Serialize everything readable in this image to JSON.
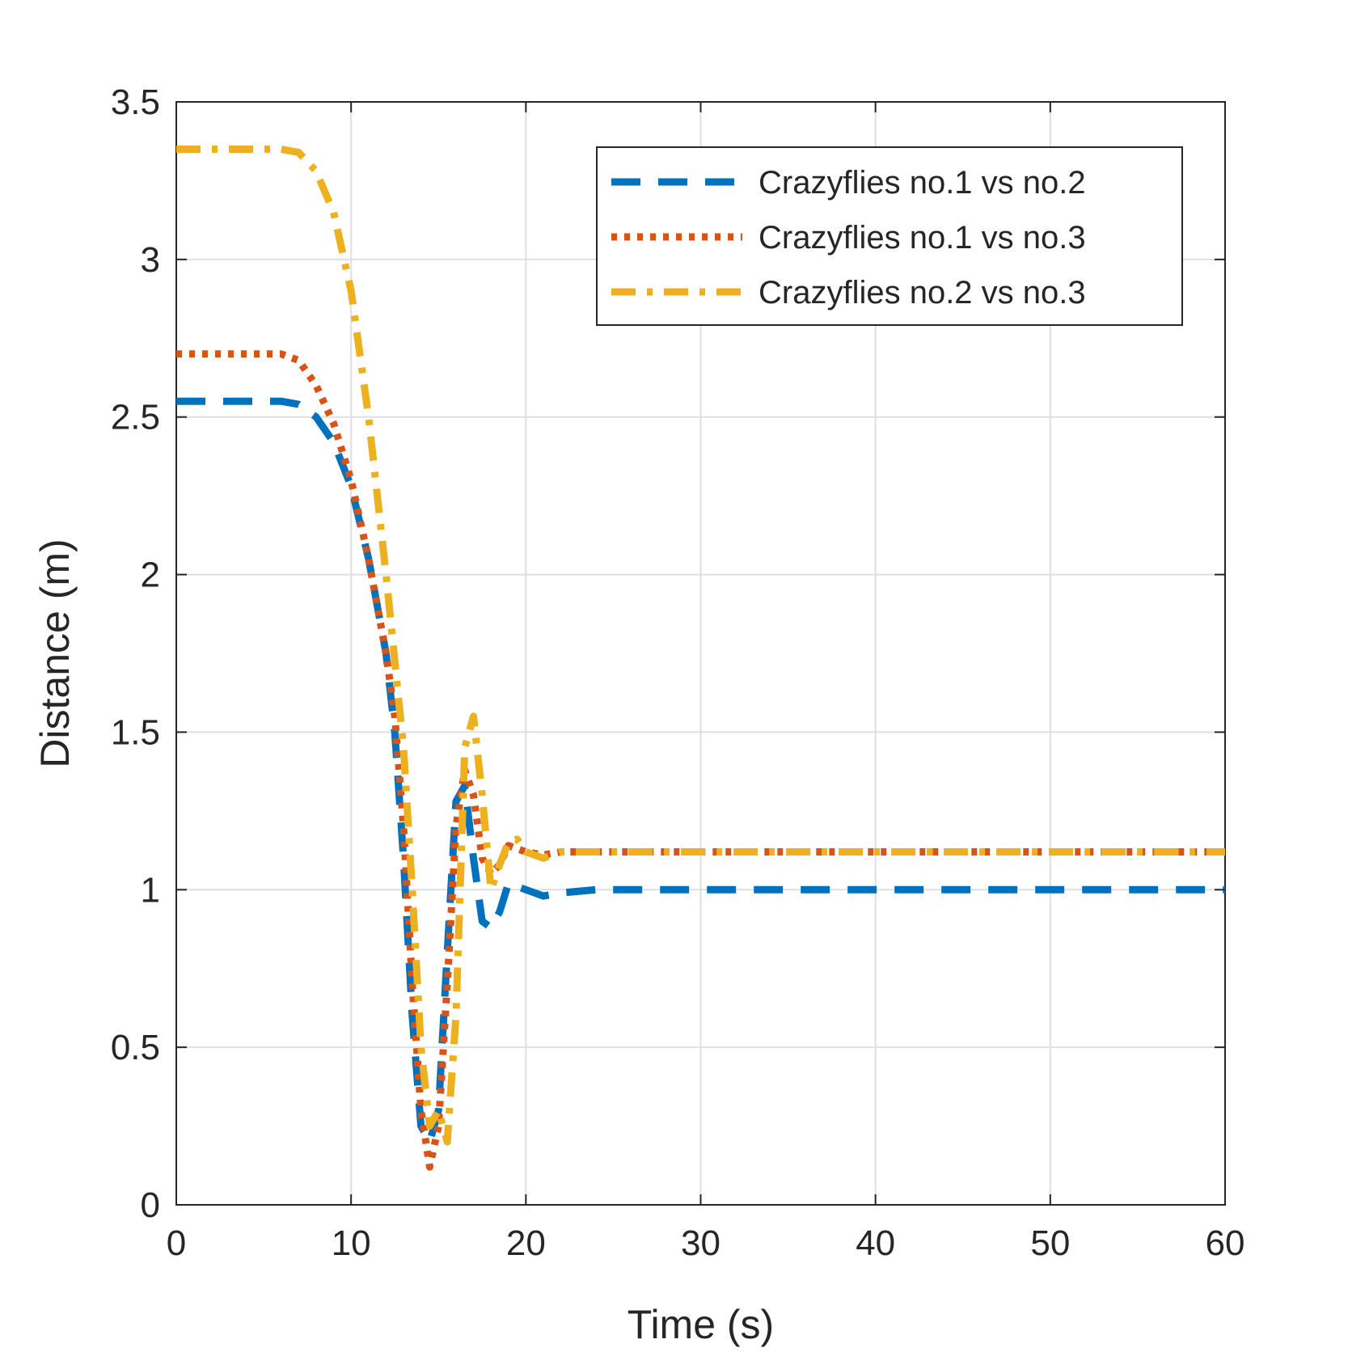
{
  "chart_data": {
    "type": "line",
    "title": "",
    "xlabel": "Time (s)",
    "ylabel": "Distance (m)",
    "xlim": [
      0,
      60
    ],
    "ylim": [
      0,
      3.5
    ],
    "xticks": [
      0,
      10,
      20,
      30,
      40,
      50,
      60
    ],
    "yticks": [
      0,
      0.5,
      1,
      1.5,
      2,
      2.5,
      3,
      3.5
    ],
    "xtick_labels": [
      "0",
      "10",
      "20",
      "30",
      "40",
      "50",
      "60"
    ],
    "ytick_labels": [
      "0",
      "0.5",
      "1",
      "1.5",
      "2",
      "2.5",
      "3",
      "3.5"
    ],
    "grid": true,
    "legend_position": "top-right",
    "series": [
      {
        "name": "Crazyflies no.1 vs no.2",
        "color": "#0072BD",
        "dash": "dashed",
        "x": [
          0,
          6,
          7,
          8,
          9,
          10,
          11,
          12,
          12.5,
          13,
          13.5,
          14,
          14.5,
          15,
          15.5,
          16,
          16.5,
          17,
          17.5,
          18,
          18.5,
          19,
          20,
          21,
          22,
          24,
          60
        ],
        "y": [
          2.55,
          2.55,
          2.54,
          2.5,
          2.42,
          2.28,
          2.05,
          1.75,
          1.5,
          1.1,
          0.6,
          0.25,
          0.2,
          0.3,
          0.8,
          1.28,
          1.33,
          1.1,
          0.9,
          0.88,
          0.93,
          1.02,
          1.0,
          0.98,
          0.99,
          1.0,
          1.0
        ]
      },
      {
        "name": "Crazyflies no.1 vs no.3",
        "color": "#D95319",
        "dash": "dotted",
        "x": [
          0,
          6,
          7,
          8,
          9,
          10,
          11,
          12,
          12.5,
          13,
          13.5,
          14,
          14.5,
          15,
          15.5,
          16,
          16.5,
          17,
          17.5,
          18,
          18.5,
          19,
          20,
          21,
          22,
          24,
          60
        ],
        "y": [
          2.7,
          2.7,
          2.68,
          2.6,
          2.48,
          2.3,
          2.05,
          1.75,
          1.55,
          1.2,
          0.7,
          0.3,
          0.12,
          0.25,
          0.7,
          1.2,
          1.38,
          1.3,
          1.1,
          1.05,
          1.08,
          1.14,
          1.12,
          1.11,
          1.12,
          1.12,
          1.12
        ]
      },
      {
        "name": "Crazyflies no.2 vs no.3",
        "color": "#EDB120",
        "dash": "dashdot",
        "x": [
          0,
          6,
          7,
          8,
          9,
          10,
          11,
          12,
          13,
          13.5,
          14,
          14.5,
          15,
          15.5,
          16,
          16.5,
          17,
          17.5,
          18,
          18.5,
          19,
          19.5,
          20,
          21,
          22,
          24,
          60
        ],
        "y": [
          3.35,
          3.35,
          3.34,
          3.28,
          3.15,
          2.9,
          2.5,
          2.0,
          1.45,
          1.0,
          0.5,
          0.25,
          0.3,
          0.2,
          0.6,
          1.45,
          1.55,
          1.3,
          1.0,
          1.08,
          1.15,
          1.16,
          1.12,
          1.1,
          1.12,
          1.12,
          1.12
        ]
      }
    ]
  }
}
